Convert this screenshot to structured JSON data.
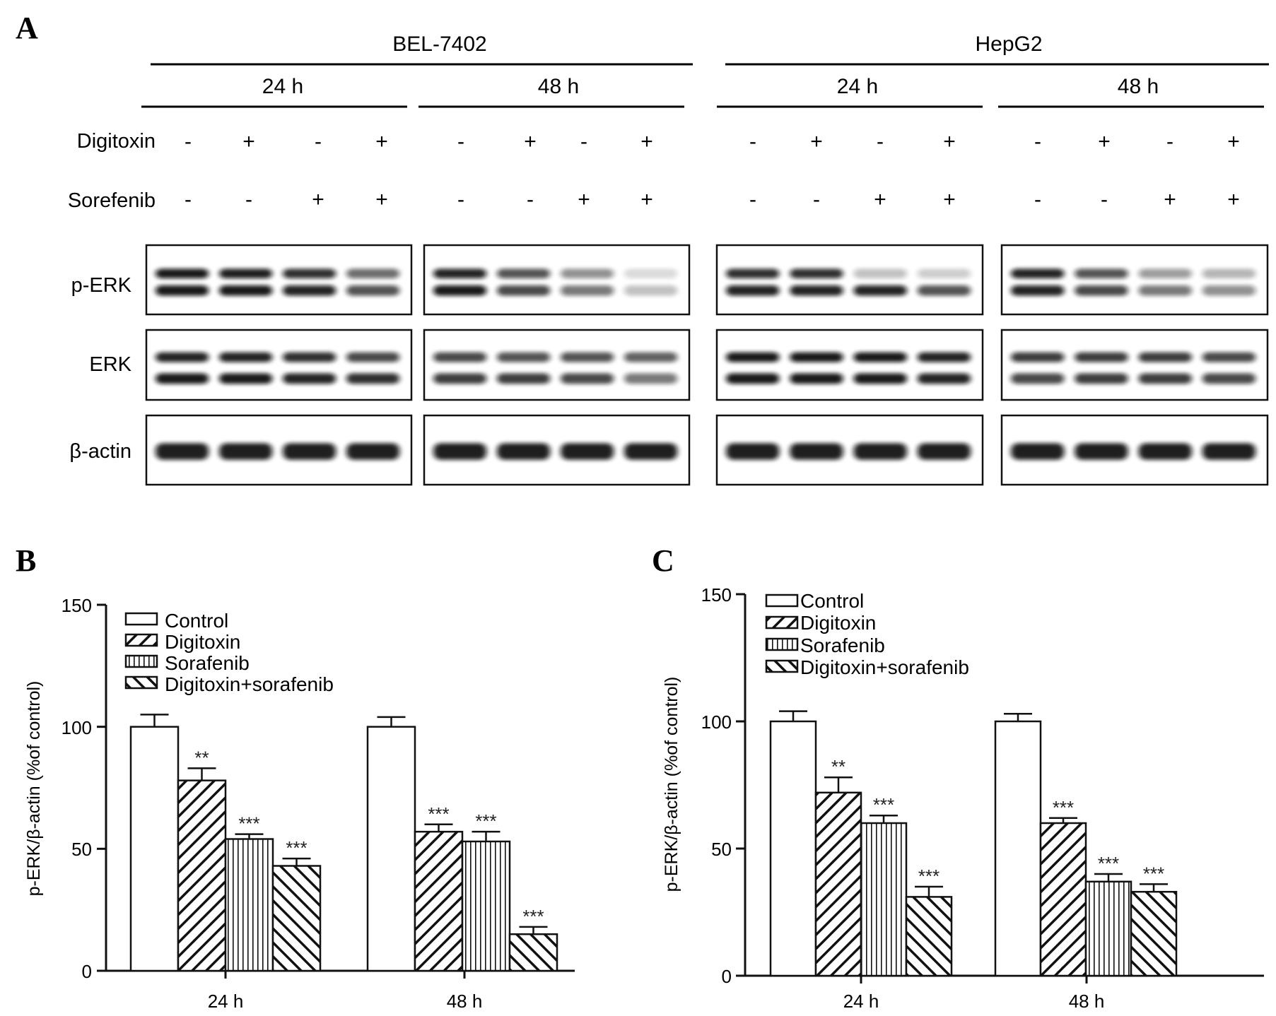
{
  "panels": {
    "a": "A",
    "b": "B",
    "c": "C"
  },
  "blot": {
    "cell_lines": [
      "BEL-7402",
      "HepG2"
    ],
    "time_points": [
      "24 h",
      "48 h",
      "24 h",
      "48 h"
    ],
    "treatment_rows": [
      {
        "label": "Digitoxin",
        "signs": [
          "-",
          "+",
          "-",
          "+"
        ]
      },
      {
        "label": "Sorefenib",
        "signs": [
          "-",
          "-",
          "+",
          "+"
        ]
      }
    ],
    "proteins": [
      "p-ERK",
      "ERK",
      "β-actin"
    ]
  },
  "chart_data": [
    {
      "type": "bar",
      "panel": "B",
      "categories": [
        "24 h",
        "48 h"
      ],
      "ylabel": "p-ERK/β-actin (%of control)",
      "ylim": [
        0,
        150
      ],
      "yticks": [
        0,
        50,
        100,
        150
      ],
      "legend_position": "top-left",
      "series": [
        {
          "name": "Control",
          "pattern": "open",
          "values": [
            100,
            100
          ],
          "errors": [
            5,
            4
          ],
          "sig": [
            "",
            ""
          ]
        },
        {
          "name": "Digitoxin",
          "pattern": "diagonal-down",
          "values": [
            78,
            57
          ],
          "errors": [
            5,
            3
          ],
          "sig": [
            "**",
            "***"
          ]
        },
        {
          "name": "Sorafenib",
          "pattern": "vertical",
          "values": [
            54,
            53
          ],
          "errors": [
            2,
            4
          ],
          "sig": [
            "***",
            "***"
          ]
        },
        {
          "name": "Digitoxin+sorafenib",
          "pattern": "diagonal-up",
          "values": [
            43,
            15
          ],
          "errors": [
            3,
            3
          ],
          "sig": [
            "***",
            "***"
          ]
        }
      ]
    },
    {
      "type": "bar",
      "panel": "C",
      "categories": [
        "24 h",
        "48 h"
      ],
      "ylabel": "p-ERK/β-actin (%of control)",
      "ylim": [
        0,
        150
      ],
      "yticks": [
        0,
        50,
        100,
        150
      ],
      "legend_position": "top-left",
      "series": [
        {
          "name": "Control",
          "pattern": "open",
          "values": [
            100,
            100
          ],
          "errors": [
            4,
            3
          ],
          "sig": [
            "",
            ""
          ]
        },
        {
          "name": "Digitoxin",
          "pattern": "diagonal-down",
          "values": [
            72,
            60
          ],
          "errors": [
            6,
            2
          ],
          "sig": [
            "**",
            "***"
          ]
        },
        {
          "name": "Sorafenib",
          "pattern": "vertical",
          "values": [
            60,
            37
          ],
          "errors": [
            3,
            3
          ],
          "sig": [
            "***",
            "***"
          ]
        },
        {
          "name": "Digitoxin+sorafenib",
          "pattern": "diagonal-up",
          "values": [
            31,
            33
          ],
          "errors": [
            4,
            3
          ],
          "sig": [
            "***",
            "***"
          ]
        }
      ]
    }
  ]
}
